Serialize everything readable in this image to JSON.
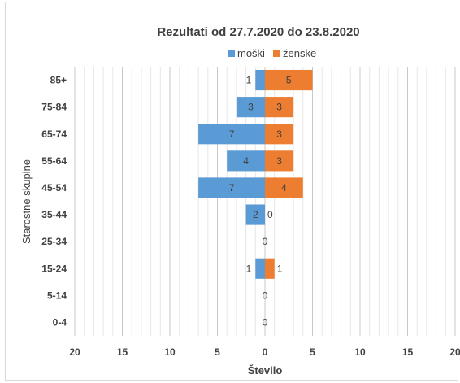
{
  "chart_data": {
    "type": "bar",
    "orientation": "horizontal",
    "title": "Rezultati od 27.7.2020 do 23.8.2020",
    "xlabel": "Število",
    "ylabel": "Starostne skupine",
    "categories": [
      "85+",
      "75-84",
      "65-74",
      "55-64",
      "45-54",
      "35-44",
      "25-34",
      "15-24",
      "5-14",
      "0-4"
    ],
    "series": [
      {
        "name": "moški",
        "color": "#5b9bd5",
        "values": [
          1,
          3,
          7,
          4,
          7,
          2,
          0,
          1,
          0,
          0
        ],
        "side": "left"
      },
      {
        "name": "ženske",
        "color": "#ed7d31",
        "values": [
          5,
          3,
          3,
          3,
          4,
          0,
          0,
          1,
          0,
          0
        ],
        "side": "right"
      }
    ],
    "xticks": [
      "20",
      "15",
      "10",
      "5",
      "0",
      "5",
      "10",
      "15",
      "20"
    ],
    "xlim": [
      -20,
      20
    ],
    "legend": "top-center",
    "grid": true
  }
}
